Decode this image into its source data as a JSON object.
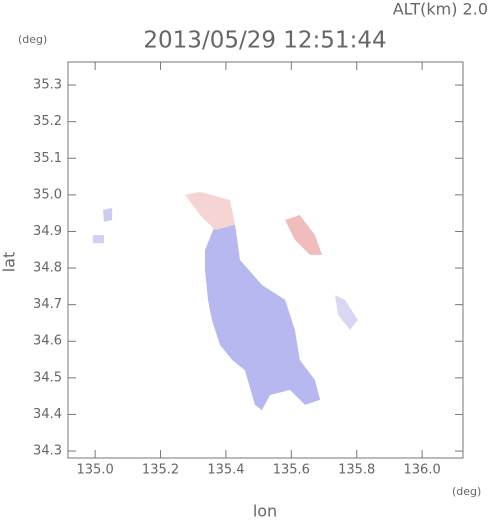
{
  "chart_data": {
    "type": "map",
    "title": "2013/05/29 12:51:44",
    "subtitle": "ALT(km) 2.0",
    "xlabel": "lon",
    "ylabel": "lat",
    "xunit": "(deg)",
    "yunit": "(deg)",
    "xlim": [
      134.917,
      136.125
    ],
    "ylim": [
      34.281,
      35.363
    ],
    "xticks": [
      {
        "value": 135.0,
        "label": "135.0"
      },
      135.2,
      135.4,
      135.6,
      135.8,
      {
        "value": 136.0,
        "label": "136.0"
      }
    ],
    "yticks": [
      34.3,
      34.4,
      34.5,
      34.6,
      34.7,
      34.8,
      34.9,
      {
        "value": 35.0,
        "label": "35.0"
      },
      35.1,
      35.2,
      35.3
    ],
    "regions": [
      {
        "color": "#b8b8f0",
        "lon": [
          135.336,
          135.367,
          135.428,
          135.443,
          135.51,
          135.581,
          135.611,
          135.626,
          135.672,
          135.688,
          135.642,
          135.596,
          135.535,
          135.51,
          135.489,
          135.458,
          135.419,
          135.382,
          135.357,
          135.345,
          135.336
        ],
        "lat": [
          34.849,
          34.918,
          34.918,
          34.822,
          34.754,
          34.713,
          34.631,
          34.549,
          34.494,
          34.44,
          34.426,
          34.467,
          34.453,
          34.412,
          34.426,
          34.521,
          34.549,
          34.59,
          34.658,
          34.713,
          34.795
        ]
      },
      {
        "color": "#f5d4d4",
        "lon": [
          135.275,
          135.321,
          135.412,
          135.428,
          135.367,
          135.321
        ],
        "lat": [
          35.0,
          35.008,
          34.986,
          34.918,
          34.904,
          34.945
        ]
      },
      {
        "color": "#f0bcbc",
        "lon": [
          135.581,
          135.626,
          135.672,
          135.694,
          135.657,
          135.611
        ],
        "lat": [
          34.931,
          34.945,
          34.89,
          34.836,
          34.836,
          34.877
        ]
      },
      {
        "color": "#d8d8f4",
        "lon": [
          135.734,
          135.764,
          135.804,
          135.779,
          135.743
        ],
        "lat": [
          34.726,
          34.713,
          34.658,
          34.631,
          34.672
        ]
      },
      {
        "color": "#ccccf0",
        "lon": [
          135.024,
          135.052,
          135.052,
          135.027
        ],
        "lat": [
          34.959,
          34.964,
          34.931,
          34.926
        ]
      },
      {
        "color": "#d0d0f2",
        "lon": [
          134.993,
          135.027,
          135.027,
          134.993
        ],
        "lat": [
          34.89,
          34.89,
          34.868,
          34.868
        ]
      }
    ]
  }
}
